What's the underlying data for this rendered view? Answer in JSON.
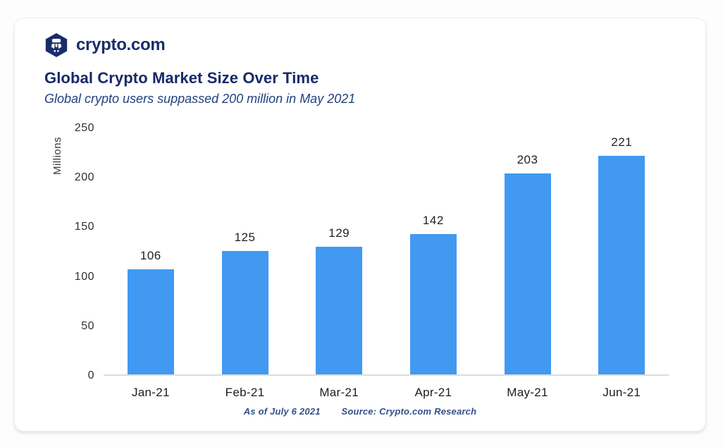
{
  "brand": {
    "name": "crypto.com",
    "logo_color": "#1a2d6b",
    "logo_icon": "crypto-com-hexagon-shield"
  },
  "header": {
    "title": "Global Crypto Market Size Over Time",
    "subtitle": "Global crypto users suppassed 200 million in May 2021"
  },
  "chart_data": {
    "type": "bar",
    "title": "Global Crypto Market Size Over Time",
    "subtitle": "Global crypto users suppassed 200 million in May 2021",
    "categories": [
      "Jan-21",
      "Feb-21",
      "Mar-21",
      "Apr-21",
      "May-21",
      "Jun-21"
    ],
    "values": [
      106,
      125,
      129,
      142,
      203,
      221
    ],
    "xlabel": "",
    "ylabel": "Millions",
    "ylim": [
      0,
      250
    ],
    "yticks": [
      0,
      50,
      100,
      150,
      200,
      250
    ],
    "grid": false,
    "legend": false,
    "data_labels": true,
    "bar_color": "#4199F2"
  },
  "footer": {
    "as_of": "As of July 6 2021",
    "source": "Source: Crypto.com Research"
  },
  "colors": {
    "accent_bar": "#4199F2",
    "brand_navy": "#1a2d6b",
    "title_navy": "#16296b",
    "subtitle_blue": "#20407f",
    "axis_line": "#dcdcdc",
    "label_dark": "#1f1f1f"
  }
}
